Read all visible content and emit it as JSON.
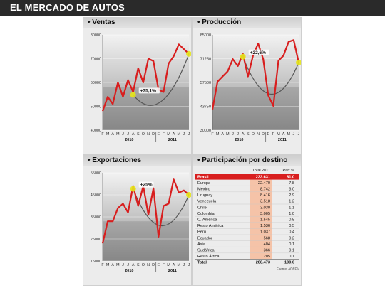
{
  "header": {
    "title": "EL MERCADO DE AUTOS"
  },
  "colors": {
    "line": "#d81e1e",
    "marker": "#e5e51a",
    "trend": "#555555",
    "highlight_row": "#d81e1e",
    "bar_fill": "#f5c3a8"
  },
  "months": [
    "F",
    "M",
    "A",
    "M",
    "J",
    "J",
    "A",
    "S",
    "O",
    "N",
    "D",
    "E",
    "F",
    "M",
    "A",
    "M",
    "J",
    "J"
  ],
  "charts": {
    "ventas": {
      "title": "• Ventas",
      "ylim": [
        40000,
        80000
      ],
      "yticks": [
        "80000",
        "70000",
        "60000",
        "50000",
        "40000"
      ],
      "values": [
        48000,
        54000,
        51000,
        60000,
        54000,
        61000,
        56000,
        66000,
        60000,
        70000,
        69000,
        57000,
        56000,
        68000,
        71000,
        76000,
        74000,
        72000
      ],
      "annotation": "+35,1%",
      "years": [
        "2010",
        "2011"
      ]
    },
    "produccion": {
      "title": "• Producción",
      "ylim": [
        30000,
        85000
      ],
      "yticks": [
        "85000",
        "71250",
        "57500",
        "43750",
        "30000"
      ],
      "values": [
        42000,
        58000,
        61000,
        64000,
        71000,
        67000,
        74000,
        61000,
        73000,
        80000,
        71000,
        50000,
        44000,
        70000,
        73000,
        81000,
        82000,
        69000
      ],
      "annotation": "+22,6%",
      "years": [
        "2010",
        "2011"
      ]
    },
    "exportaciones": {
      "title": "• Exportaciones",
      "ylim": [
        15000,
        55000
      ],
      "yticks": [
        "55000",
        "45000",
        "35000",
        "25000",
        "15000"
      ],
      "values": [
        23000,
        33000,
        33000,
        39000,
        41000,
        37000,
        49000,
        40000,
        49000,
        36000,
        48000,
        26000,
        40000,
        41000,
        52000,
        46000,
        47000,
        45000
      ],
      "annotation": "+25%",
      "years": [
        "2010",
        "2011"
      ]
    }
  },
  "participacion": {
    "title": "• Participación por destino",
    "col_total": "Total 2011",
    "col_part": "Part.%",
    "rows": [
      {
        "name": "Brasil",
        "total": "233.631",
        "part": "81,0",
        "value": 233631
      },
      {
        "name": "Europa",
        "total": "22.470",
        "part": "7,8",
        "value": 22470
      },
      {
        "name": "México",
        "total": "8.742",
        "part": "3,0",
        "value": 8742
      },
      {
        "name": "Uruguay",
        "total": "8.416",
        "part": "2,9",
        "value": 8416
      },
      {
        "name": "Venezuela",
        "total": "3.518",
        "part": "1,2",
        "value": 3518
      },
      {
        "name": "Chile",
        "total": "3.030",
        "part": "1,1",
        "value": 3030
      },
      {
        "name": "Colombia",
        "total": "3.005",
        "part": "1,0",
        "value": 3005
      },
      {
        "name": "C. América",
        "total": "1.545",
        "part": "0,5",
        "value": 1545
      },
      {
        "name": "Resto América",
        "total": "1.536",
        "part": "0,5",
        "value": 1536
      },
      {
        "name": "Perú",
        "total": "1.037",
        "part": "0,4",
        "value": 1037
      },
      {
        "name": "Ecuador",
        "total": "568",
        "part": "0,2",
        "value": 568
      },
      {
        "name": "Asia",
        "total": "404",
        "part": "0,1",
        "value": 404
      },
      {
        "name": "Sudáfrica",
        "total": "366",
        "part": "0,1",
        "value": 366
      },
      {
        "name": "Resto África",
        "total": "205",
        "part": "0,1",
        "value": 205
      }
    ],
    "total_row": {
      "name": "Total",
      "total": "288.473",
      "part": "100,0"
    },
    "source": "Fuente: ADEFA"
  }
}
